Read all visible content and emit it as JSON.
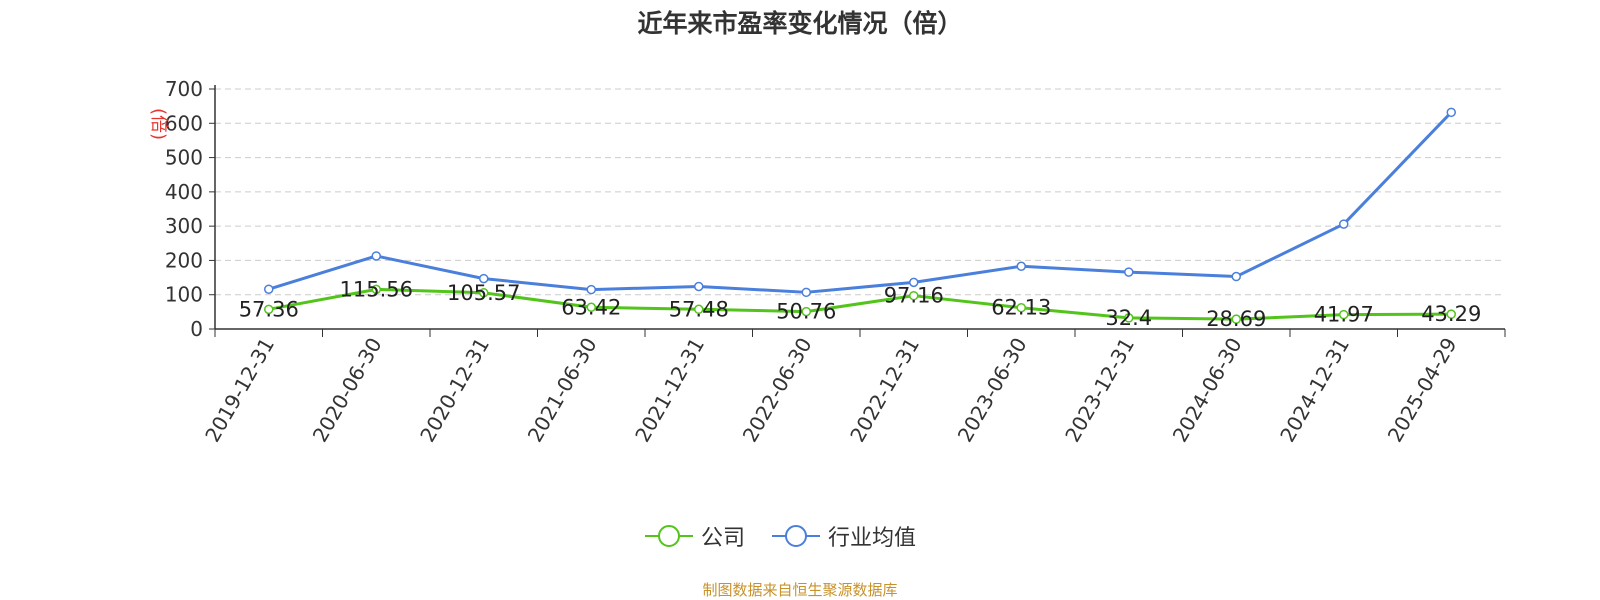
{
  "chart_data": {
    "type": "line",
    "title": "近年来市盈率变化情况（倍）",
    "ylabel": "(倍)",
    "xlabel": "",
    "categories": [
      "2019-12-31",
      "2020-06-30",
      "2020-12-31",
      "2021-06-30",
      "2021-12-31",
      "2022-06-30",
      "2022-12-31",
      "2023-06-30",
      "2023-12-31",
      "2024-06-30",
      "2024-12-31",
      "2025-04-29"
    ],
    "series": [
      {
        "name": "公司",
        "color": "#52c41a",
        "values": [
          57.36,
          115.56,
          105.57,
          63.42,
          57.48,
          50.76,
          97.16,
          62.13,
          32.4,
          28.69,
          41.97,
          43.29
        ],
        "labels": [
          "57.36",
          "115.56",
          "105.57",
          "63.42",
          "57.48",
          "50.76",
          "97.16",
          "62.13",
          "32.4",
          "28.69",
          "41.97",
          "43.29"
        ]
      },
      {
        "name": "行业均值",
        "color": "#4a7fdc",
        "values": [
          116,
          213,
          147,
          115,
          124,
          107,
          136,
          183,
          166,
          153,
          306,
          632
        ]
      }
    ],
    "ylim": [
      0,
      700
    ],
    "yticks": [
      0,
      100,
      200,
      300,
      400,
      500,
      600,
      700
    ],
    "grid": true,
    "legend_position": "bottom-center"
  },
  "footer": {
    "source": "制图数据来自恒生聚源数据库"
  }
}
